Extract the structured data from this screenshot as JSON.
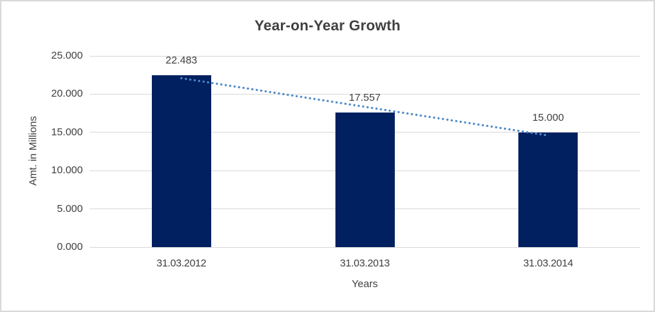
{
  "chart_data": {
    "type": "bar",
    "title": "Year-on-Year Growth",
    "xlabel": "Years",
    "ylabel": "Amt. in Millions",
    "categories": [
      "31.03.2012",
      "31.03.2013",
      "31.03.2014"
    ],
    "values": [
      22.483,
      17.557,
      15.0
    ],
    "data_labels": [
      "22.483",
      "17.557",
      "15.000"
    ],
    "yticks": [
      {
        "value": 25,
        "label": "25.000"
      },
      {
        "value": 20,
        "label": "20.000"
      },
      {
        "value": 15,
        "label": "15.000"
      },
      {
        "value": 10,
        "label": "10.000"
      },
      {
        "value": 5,
        "label": "5.000"
      },
      {
        "value": 0,
        "label": "0.000"
      }
    ],
    "ylim": [
      0,
      25
    ],
    "grid": "horizontal",
    "legend": "none",
    "trendline": {
      "type": "linear",
      "style": "dotted",
      "color": "#4e8ac9"
    },
    "colors": {
      "bar": "#002060",
      "gridline": "#d9d9d9",
      "text": "#404040",
      "frame_border": "#d9d9d9",
      "background": "#ffffff"
    }
  }
}
